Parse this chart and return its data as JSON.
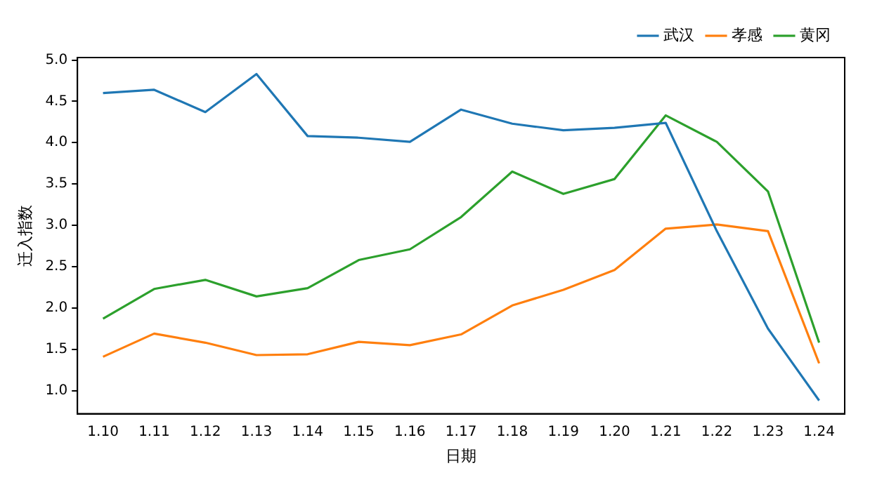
{
  "chart_data": {
    "type": "line",
    "xlabel": "日期",
    "ylabel": "迁入指数",
    "categories": [
      "1.10",
      "1.11",
      "1.12",
      "1.13",
      "1.14",
      "1.15",
      "1.16",
      "1.17",
      "1.18",
      "1.19",
      "1.20",
      "1.21",
      "1.22",
      "1.23",
      "1.24"
    ],
    "series": [
      {
        "name": "武汉",
        "color": "#1f77b4",
        "values": [
          4.6,
          4.64,
          4.37,
          4.83,
          4.08,
          4.06,
          4.01,
          4.4,
          4.23,
          4.15,
          4.18,
          4.24,
          2.93,
          1.75,
          0.88
        ]
      },
      {
        "name": "孝感",
        "color": "#ff7f0e",
        "values": [
          1.41,
          1.69,
          1.58,
          1.43,
          1.44,
          1.59,
          1.55,
          1.68,
          2.03,
          2.22,
          2.46,
          2.96,
          3.01,
          2.93,
          1.33
        ]
      },
      {
        "name": "黄冈",
        "color": "#2ca02c",
        "values": [
          1.87,
          2.23,
          2.34,
          2.14,
          2.24,
          2.58,
          2.71,
          3.1,
          3.65,
          3.38,
          3.56,
          4.33,
          4.01,
          3.41,
          1.58
        ]
      }
    ],
    "ylim": [
      0.72,
      5.03
    ],
    "yticks": [
      {
        "value": 1,
        "label": "1.0"
      },
      {
        "value": 1.5,
        "label": "1.5"
      },
      {
        "value": 2,
        "label": "2.0"
      },
      {
        "value": 2.5,
        "label": "2.5"
      },
      {
        "value": 3,
        "label": "3.0"
      },
      {
        "value": 3.5,
        "label": "3.5"
      },
      {
        "value": 4,
        "label": "4.0"
      },
      {
        "value": 4.5,
        "label": "4.5"
      },
      {
        "value": 5,
        "label": "5.0"
      }
    ],
    "grid": false,
    "legend": "top right",
    "marker": "none",
    "line_style": "solid"
  }
}
